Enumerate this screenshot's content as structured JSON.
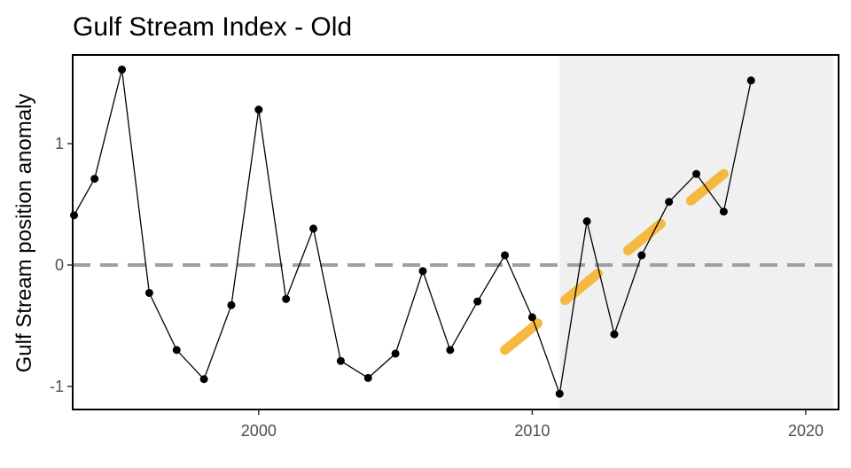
{
  "chart_data": {
    "type": "line",
    "title": "Gulf Stream Index - Old",
    "xlabel": "",
    "ylabel": "Gulf Stream position anomaly",
    "xlim": [
      1993.2,
      2021.2
    ],
    "ylim": [
      -1.19,
      1.73
    ],
    "x_ticks": [
      2000,
      2010,
      2020
    ],
    "y_ticks": [
      -1,
      0,
      1
    ],
    "x_tick_labels": [
      "2000",
      "2010",
      "2020"
    ],
    "y_tick_labels": [
      "-1",
      "0",
      "1"
    ],
    "grid": false,
    "reference_line": {
      "y": 0,
      "style": "dashed",
      "color": "#a0a0a0"
    },
    "shaded_region": {
      "x_start": 2011,
      "x_end": 2021,
      "color": "#f0f0f0"
    },
    "series": [
      {
        "x": [
          1993.25,
          1994,
          1995,
          1996,
          1997,
          1998,
          1999,
          2000,
          2001,
          2002,
          2003,
          2004,
          2005,
          2006,
          2007,
          2008,
          2009,
          2010,
          2011,
          2012,
          2013,
          2014,
          2015,
          2016,
          2017,
          2018
        ],
        "y": [
          0.41,
          0.71,
          1.61,
          -0.23,
          -0.7,
          -0.94,
          -0.33,
          1.28,
          -0.28,
          0.3,
          -0.79,
          -0.93,
          -0.73,
          -0.05,
          -0.7,
          -0.3,
          0.08,
          -0.43,
          -1.06,
          0.36,
          -0.57,
          0.08,
          0.52,
          0.75,
          0.44,
          1.52
        ],
        "color": "#000000"
      }
    ],
    "trend_segments": [
      {
        "x": [
          2009,
          2010.2
        ],
        "y": [
          -0.7,
          -0.48
        ]
      },
      {
        "x": [
          2011.2,
          2012.4
        ],
        "y": [
          -0.29,
          -0.07
        ]
      },
      {
        "x": [
          2013.5,
          2014.7
        ],
        "y": [
          0.12,
          0.34
        ]
      },
      {
        "x": [
          2015.8,
          2017
        ],
        "y": [
          0.53,
          0.75
        ]
      }
    ],
    "trend_color": "#f5b942"
  }
}
